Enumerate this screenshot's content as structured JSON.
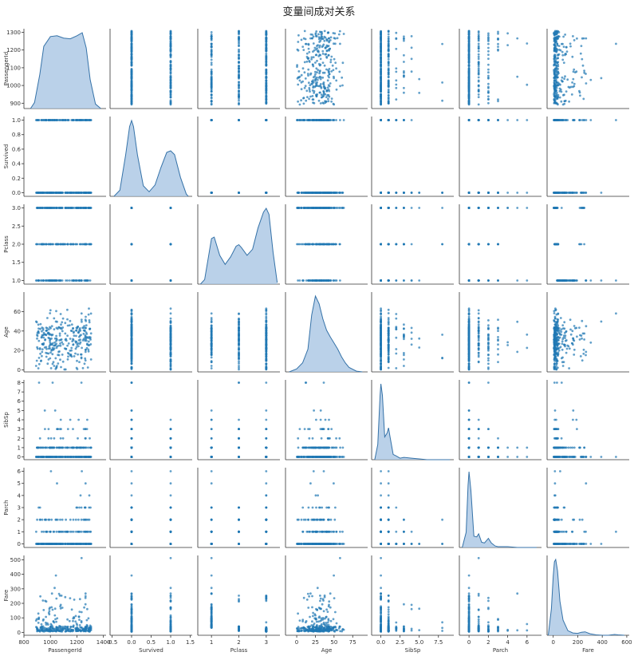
{
  "chart_data": {
    "type": "pairplot",
    "title": "变量间成对关系",
    "variables": [
      "PassengerId",
      "Survived",
      "Pclass",
      "Age",
      "SibSp",
      "Parch",
      "Fare"
    ],
    "colors": {
      "point": "#1f77b4",
      "kde_fill": "#a9c5e3",
      "kde_line": "#3572a8",
      "axis": "#333333"
    },
    "grid": false,
    "x_axes": {
      "PassengerId": {
        "ticks": [
          800,
          1000,
          1200,
          1400
        ],
        "range": [
          800,
          1420
        ]
      },
      "Survived": {
        "ticks": [
          -0.5,
          0.0,
          0.5,
          1.0,
          1.5
        ],
        "tick_labels": [
          "-0.5",
          "0.0",
          "0.5",
          "1.0",
          "1.5"
        ],
        "range": [
          -0.55,
          1.55
        ]
      },
      "Pclass": {
        "ticks": [
          1,
          2,
          3
        ],
        "range": [
          0.5,
          3.5
        ]
      },
      "Age": {
        "ticks": [
          0,
          25,
          50,
          75
        ],
        "range": [
          -15,
          95
        ]
      },
      "SibSp": {
        "ticks": [
          0.0,
          2.5,
          5.0,
          7.5
        ],
        "tick_labels": [
          "0.0",
          "2.5",
          "5.0",
          "7.5"
        ],
        "range": [
          -1.2,
          9.5
        ]
      },
      "Parch": {
        "ticks": [
          0,
          2,
          4,
          6
        ],
        "range": [
          -1,
          7.5
        ]
      },
      "Fare": {
        "ticks": [
          0,
          200,
          400,
          600
        ],
        "range": [
          -50,
          620
        ]
      }
    },
    "y_axes": {
      "PassengerId": {
        "ticks": [
          900,
          1000,
          1100,
          1200,
          1300
        ],
        "range": [
          870,
          1320
        ]
      },
      "Survived": {
        "ticks": [
          0.0,
          0.2,
          0.4,
          0.6,
          0.8,
          1.0
        ],
        "tick_labels": [
          "0.0",
          "0.2",
          "0.4",
          "0.6",
          "0.8",
          "1.0"
        ],
        "range": [
          -0.05,
          1.05
        ]
      },
      "Pclass": {
        "ticks": [
          1.0,
          1.5,
          2.0,
          2.5,
          3.0
        ],
        "tick_labels": [
          "1.0",
          "1.5",
          "2.0",
          "2.5",
          "3.0"
        ],
        "range": [
          0.9,
          3.1
        ]
      },
      "Age": {
        "ticks": [
          0,
          20,
          40,
          60
        ],
        "range": [
          -2,
          80
        ]
      },
      "SibSp": {
        "ticks": [
          0,
          1,
          2,
          3,
          4,
          5,
          6,
          7,
          8
        ],
        "range": [
          -0.3,
          8.3
        ]
      },
      "Parch": {
        "ticks": [
          0,
          1,
          2,
          3,
          4,
          5,
          6
        ],
        "range": [
          -0.3,
          6.3
        ]
      },
      "Fare": {
        "ticks": [
          0,
          100,
          200,
          300,
          400,
          500
        ],
        "range": [
          -20,
          530
        ]
      }
    },
    "diagonal_kde": {
      "PassengerId": {
        "x": [
          850,
          880,
          920,
          950,
          1000,
          1050,
          1100,
          1150,
          1200,
          1240,
          1270,
          1300,
          1340,
          1380
        ],
        "y": [
          0.0,
          0.08,
          0.45,
          0.82,
          0.95,
          0.96,
          0.93,
          0.92,
          0.96,
          1.0,
          0.8,
          0.38,
          0.06,
          0.0
        ]
      },
      "Survived": {
        "x": [
          -0.45,
          -0.3,
          -0.15,
          -0.05,
          0.0,
          0.05,
          0.15,
          0.3,
          0.45,
          0.6,
          0.75,
          0.9,
          1.0,
          1.1,
          1.25,
          1.4,
          1.45
        ],
        "y": [
          0.0,
          0.08,
          0.55,
          0.92,
          1.0,
          0.92,
          0.55,
          0.14,
          0.06,
          0.15,
          0.38,
          0.58,
          0.6,
          0.55,
          0.25,
          0.03,
          0.0
        ]
      },
      "Pclass": {
        "x": [
          0.6,
          0.75,
          0.9,
          1.0,
          1.1,
          1.3,
          1.5,
          1.7,
          1.9,
          2.0,
          2.1,
          2.3,
          2.5,
          2.7,
          2.9,
          3.0,
          3.1,
          3.25,
          3.4
        ],
        "y": [
          0.0,
          0.06,
          0.38,
          0.6,
          0.62,
          0.38,
          0.26,
          0.36,
          0.5,
          0.52,
          0.48,
          0.38,
          0.46,
          0.74,
          0.95,
          1.0,
          0.92,
          0.42,
          0.02
        ]
      },
      "Age": {
        "x": [
          -10,
          0,
          8,
          15,
          20,
          25,
          30,
          35,
          40,
          45,
          50,
          55,
          60,
          65,
          70,
          80,
          88
        ],
        "y": [
          0.0,
          0.04,
          0.12,
          0.3,
          0.75,
          1.0,
          0.9,
          0.7,
          0.55,
          0.46,
          0.38,
          0.3,
          0.2,
          0.12,
          0.06,
          0.01,
          0.0
        ]
      },
      "SibSp": {
        "x": [
          -0.8,
          -0.4,
          -0.1,
          0.0,
          0.2,
          0.5,
          0.8,
          1.0,
          1.2,
          1.6,
          2.0,
          2.5,
          3.0,
          4.0,
          5.0,
          6.0,
          7.0,
          8.0,
          9.0
        ],
        "y": [
          0.0,
          0.2,
          0.85,
          1.0,
          0.85,
          0.3,
          0.35,
          0.42,
          0.3,
          0.07,
          0.05,
          0.02,
          0.03,
          0.02,
          0.01,
          0.0,
          0.0,
          0.0,
          0.0
        ]
      },
      "Parch": {
        "x": [
          -0.7,
          -0.3,
          -0.1,
          0.0,
          0.2,
          0.5,
          0.8,
          1.0,
          1.3,
          1.6,
          2.0,
          2.3,
          2.7,
          3.0,
          3.5,
          4.0,
          5.0,
          6.0,
          7.0
        ],
        "y": [
          0.0,
          0.2,
          0.82,
          1.0,
          0.75,
          0.15,
          0.14,
          0.18,
          0.07,
          0.06,
          0.12,
          0.06,
          0.02,
          0.01,
          0.01,
          0.01,
          0.0,
          0.0,
          0.0
        ]
      },
      "Fare": {
        "x": [
          -40,
          -15,
          0,
          10,
          20,
          35,
          55,
          80,
          120,
          160,
          200,
          230,
          260,
          300,
          350,
          400,
          450,
          500,
          530,
          580
        ],
        "y": [
          0.0,
          0.35,
          0.78,
          0.97,
          1.0,
          0.85,
          0.45,
          0.2,
          0.06,
          0.03,
          0.025,
          0.04,
          0.045,
          0.02,
          0.005,
          0.0,
          0.0,
          0.01,
          0.005,
          0.0
        ]
      }
    }
  }
}
